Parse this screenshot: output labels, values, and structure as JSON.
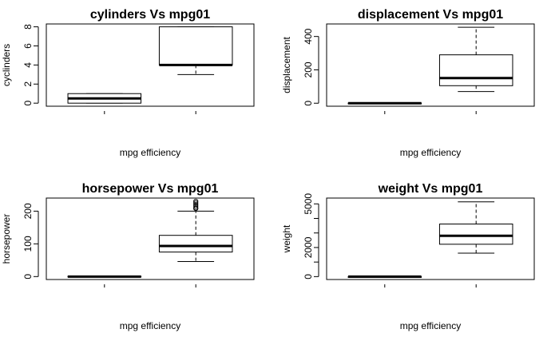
{
  "chart_data": [
    {
      "type": "boxplot",
      "title": "cylinders Vs mpg01",
      "xlabel": "mpg efficiency",
      "ylabel": "cyclinders",
      "ylim": [
        -0.32,
        8.3
      ],
      "yticks": [
        0,
        2,
        4,
        6,
        8
      ],
      "boxes": [
        {
          "whisker_low": 0,
          "q1": 0,
          "median": 0.5,
          "q3": 1,
          "whisker_high": 1,
          "outliers": []
        },
        {
          "whisker_low": 3,
          "q1": 4,
          "median": 4,
          "q3": 8,
          "whisker_high": 8,
          "outliers": []
        }
      ]
    },
    {
      "type": "boxplot",
      "title": "displacement Vs mpg01",
      "xlabel": "mpg efficiency",
      "ylabel": "displacement",
      "ylim": [
        -18,
        475
      ],
      "yticks": [
        0,
        200,
        400
      ],
      "boxes": [
        {
          "whisker_low": 0,
          "q1": 0,
          "median": 0,
          "q3": 1,
          "whisker_high": 1,
          "outliers": []
        },
        {
          "whisker_low": 70,
          "q1": 105,
          "median": 151,
          "q3": 290,
          "whisker_high": 455,
          "outliers": []
        }
      ]
    },
    {
      "type": "boxplot",
      "title": "horsepower Vs mpg01",
      "xlabel": "mpg efficiency",
      "ylabel": "horsepower",
      "ylim": [
        -9,
        240
      ],
      "yticks": [
        0,
        100,
        200
      ],
      "boxes": [
        {
          "whisker_low": 0,
          "q1": 0,
          "median": 0,
          "q3": 1,
          "whisker_high": 1,
          "outliers": []
        },
        {
          "whisker_low": 46,
          "q1": 75,
          "median": 93.5,
          "q3": 126,
          "whisker_high": 200,
          "outliers": [
            208,
            210,
            215,
            220,
            225,
            230
          ]
        }
      ]
    },
    {
      "type": "boxplot",
      "title": "weight Vs mpg01",
      "xlabel": "mpg efficiency",
      "ylabel": "weight",
      "ylim": [
        -200,
        5400
      ],
      "yticks": [
        0,
        1000,
        2000,
        3000,
        4000,
        5000
      ],
      "yticklabels": [
        "0",
        "",
        "2000",
        "",
        "",
        "5000"
      ],
      "boxes": [
        {
          "whisker_low": 0,
          "q1": 0,
          "median": 0,
          "q3": 1,
          "whisker_high": 1,
          "outliers": []
        },
        {
          "whisker_low": 1613,
          "q1": 2225,
          "median": 2804,
          "q3": 3615,
          "whisker_high": 5140,
          "outliers": []
        }
      ]
    }
  ]
}
